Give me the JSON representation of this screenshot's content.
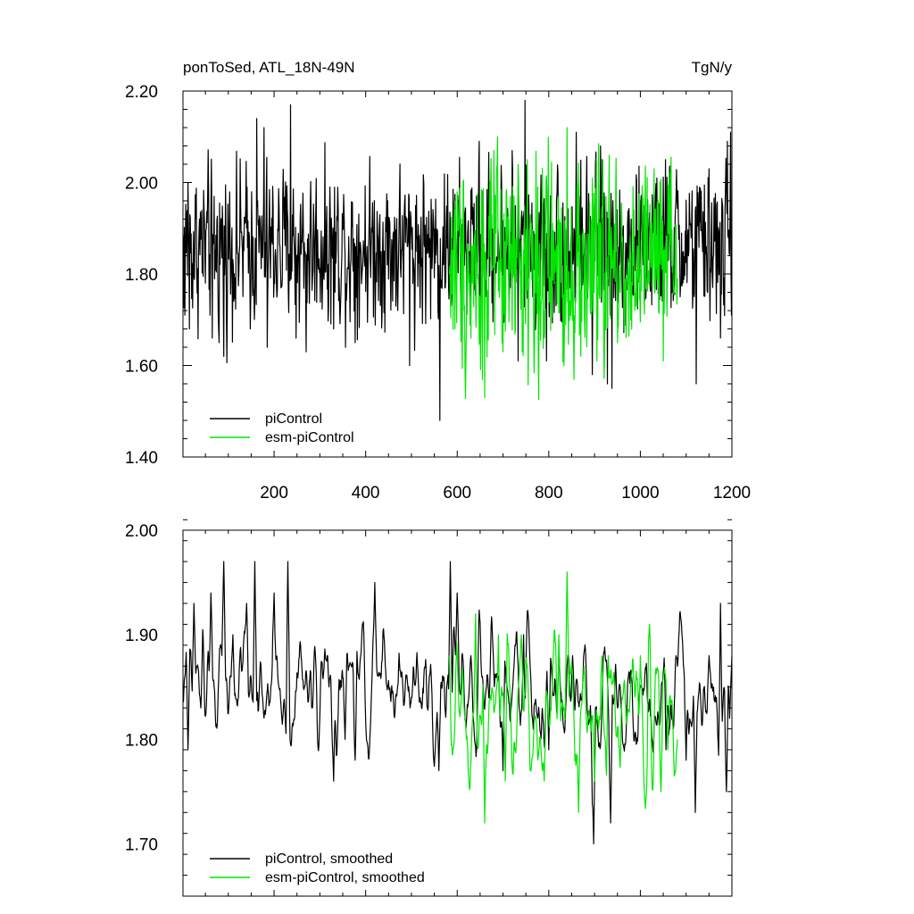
{
  "header": {
    "left_title": "ponToSed, ATL_18N-49N",
    "right_title": "TgN/y"
  },
  "colors": {
    "piControl": "#000000",
    "esm_piControl": "#00e600"
  },
  "chart_data": [
    {
      "type": "line",
      "title": "",
      "xlabel": "",
      "ylabel": "",
      "xlim": [
        1,
        1200
      ],
      "ylim": [
        1.4,
        2.2
      ],
      "yticks": [
        "1.40",
        "1.60",
        "1.80",
        "2.00",
        "2.20"
      ],
      "xticks": [
        "200",
        "400",
        "600",
        "800",
        "1000",
        "1200"
      ],
      "legend_position": "bottom-left",
      "series": [
        {
          "name": "piControl",
          "x_range": [
            1,
            1200
          ],
          "mean": 1.86,
          "amplitude": 0.09,
          "anchors": [
            [
              5,
              1.71
            ],
            [
              12,
              2.0
            ],
            [
              15,
              1.68
            ],
            [
              65,
              1.66
            ],
            [
              80,
              1.65
            ],
            [
              90,
              1.62
            ],
            [
              162,
              2.14
            ],
            [
              178,
              2.12
            ],
            [
              185,
              1.64
            ],
            [
              236,
              2.17
            ],
            [
              248,
              1.66
            ],
            [
              270,
              1.63
            ],
            [
              330,
              1.68
            ],
            [
              377,
              1.65
            ],
            [
              496,
              1.6
            ],
            [
              562,
              1.48
            ],
            [
              580,
              1.88
            ],
            [
              590,
              1.78
            ],
            [
              648,
              2.09
            ],
            [
              720,
              2.07
            ],
            [
              733,
              1.61
            ],
            [
              748,
              2.18
            ],
            [
              795,
              1.61
            ],
            [
              860,
              2.11
            ],
            [
              895,
              1.58
            ],
            [
              913,
              2.08
            ],
            [
              928,
              1.56
            ],
            [
              938,
              1.55
            ],
            [
              1055,
              2.05
            ],
            [
              1122,
              1.56
            ],
            [
              1150,
              2.03
            ],
            [
              1175,
              1.66
            ],
            [
              1190,
              2.09
            ],
            [
              1197,
              2.11
            ],
            [
              1199,
              1.71
            ]
          ]
        },
        {
          "name": "esm-piControl",
          "x_range": [
            583,
            1081
          ],
          "mean": 1.82,
          "amplitude": 0.12,
          "anchors": [
            [
              583,
              1.8
            ],
            [
              600,
              1.98
            ],
            [
              630,
              1.66
            ],
            [
              660,
              1.53
            ],
            [
              670,
              1.9
            ],
            [
              700,
              1.63
            ],
            [
              753,
              2.05
            ],
            [
              790,
              1.66
            ],
            [
              840,
              2.12
            ],
            [
              870,
              1.62
            ],
            [
              905,
              1.61
            ],
            [
              950,
              1.65
            ],
            [
              990,
              1.73
            ],
            [
              1030,
              2.03
            ],
            [
              1050,
              1.61
            ],
            [
              1081,
              1.79
            ]
          ]
        }
      ]
    },
    {
      "type": "line",
      "title": "",
      "xlabel": "",
      "ylabel": "",
      "xlim": [
        1,
        1200
      ],
      "ylim": [
        1.65,
        2.0
      ],
      "yticks": [
        "1.70",
        "1.80",
        "1.90",
        "2.00"
      ],
      "xticks": [],
      "legend_position": "bottom-left",
      "series": [
        {
          "name": "piControl, smoothed",
          "x_range": [
            1,
            1200
          ],
          "mean": 1.85,
          "amplitude": 0.045,
          "anchors": [
            [
              5,
              1.86
            ],
            [
              12,
              1.79
            ],
            [
              25,
              1.93
            ],
            [
              40,
              1.83
            ],
            [
              62,
              1.94
            ],
            [
              90,
              1.97
            ],
            [
              112,
              1.84
            ],
            [
              110,
              1.9
            ],
            [
              140,
              1.93
            ],
            [
              158,
              1.97
            ],
            [
              200,
              1.94
            ],
            [
              230,
              1.97
            ],
            [
              320,
              1.85
            ],
            [
              330,
              1.76
            ],
            [
              355,
              1.8
            ],
            [
              377,
              1.78
            ],
            [
              420,
              1.95
            ],
            [
              500,
              1.84
            ],
            [
              560,
              1.77
            ],
            [
              585,
              1.97
            ],
            [
              600,
              1.94
            ],
            [
              655,
              1.86
            ],
            [
              700,
              1.77
            ],
            [
              745,
              1.9
            ],
            [
              800,
              1.79
            ],
            [
              852,
              1.88
            ],
            [
              895,
              1.75
            ],
            [
              898,
              1.7
            ],
            [
              935,
              1.72
            ],
            [
              950,
              1.83
            ],
            [
              1000,
              1.85
            ],
            [
              1056,
              1.79
            ],
            [
              1070,
              1.82
            ],
            [
              1100,
              1.78
            ],
            [
              1120,
              1.73
            ],
            [
              1150,
              1.88
            ],
            [
              1175,
              1.93
            ],
            [
              1188,
              1.75
            ],
            [
              1195,
              1.82
            ],
            [
              1200,
              1.88
            ]
          ]
        },
        {
          "name": "esm-piControl, smoothed",
          "x_range": [
            583,
            1081
          ],
          "mean": 1.83,
          "amplitude": 0.05,
          "anchors": [
            [
              583,
              1.88
            ],
            [
              620,
              1.8
            ],
            [
              640,
              1.92
            ],
            [
              660,
              1.72
            ],
            [
              690,
              1.9
            ],
            [
              705,
              1.76
            ],
            [
              740,
              1.9
            ],
            [
              770,
              1.82
            ],
            [
              790,
              1.76
            ],
            [
              822,
              1.9
            ],
            [
              840,
              1.96
            ],
            [
              865,
              1.73
            ],
            [
              900,
              1.76
            ],
            [
              930,
              1.88
            ],
            [
              960,
              1.84
            ],
            [
              1000,
              1.88
            ],
            [
              1020,
              1.91
            ],
            [
              1045,
              1.75
            ],
            [
              1060,
              1.79
            ],
            [
              1081,
              1.8
            ]
          ]
        }
      ]
    }
  ]
}
